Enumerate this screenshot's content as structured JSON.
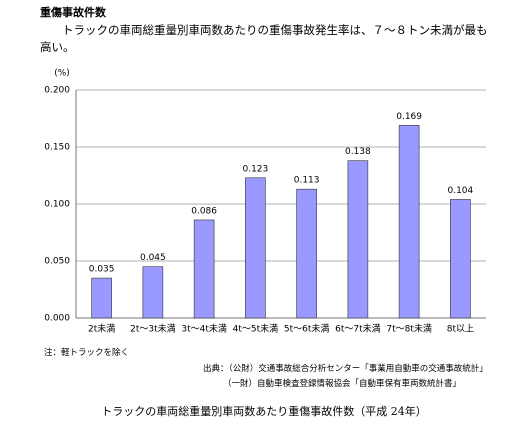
{
  "heading": "重傷事故件数",
  "lead": "トラックの車両総重量別車両数あたりの重傷事故発生率は、７～８トン未満が最も高い。",
  "chart_data": {
    "type": "bar",
    "y_label": "(%)",
    "categories": [
      "2t未満",
      "2t～3t未満",
      "3t～4t未満",
      "4t～5t未満",
      "5t～6t未満",
      "6t～7t未満",
      "7t～8t未満",
      "8t以上"
    ],
    "values": [
      0.035,
      0.045,
      0.086,
      0.123,
      0.113,
      0.138,
      0.169,
      0.104
    ],
    "color": "#9999ff",
    "ylim": [
      0,
      0.2
    ],
    "yticks": [
      {
        "value": 0,
        "label": "0.000"
      },
      {
        "value": 0.05,
        "label": "0.050"
      },
      {
        "value": 0.1,
        "label": "0.100"
      },
      {
        "value": 0.15,
        "label": "0.150"
      },
      {
        "value": 0.2,
        "label": "0.200"
      }
    ],
    "grid": true
  },
  "note": "注：軽トラックを除く",
  "sources": [
    "出典：（公財）交通事故総合分析センター「事業用自動車の交通事故統計」",
    "（一財）自動車検査登録情報協会「自動車保有車両数統計書」"
  ],
  "caption": "トラックの車両総重量別車両数あたり重傷事故件数（平成 24年）"
}
